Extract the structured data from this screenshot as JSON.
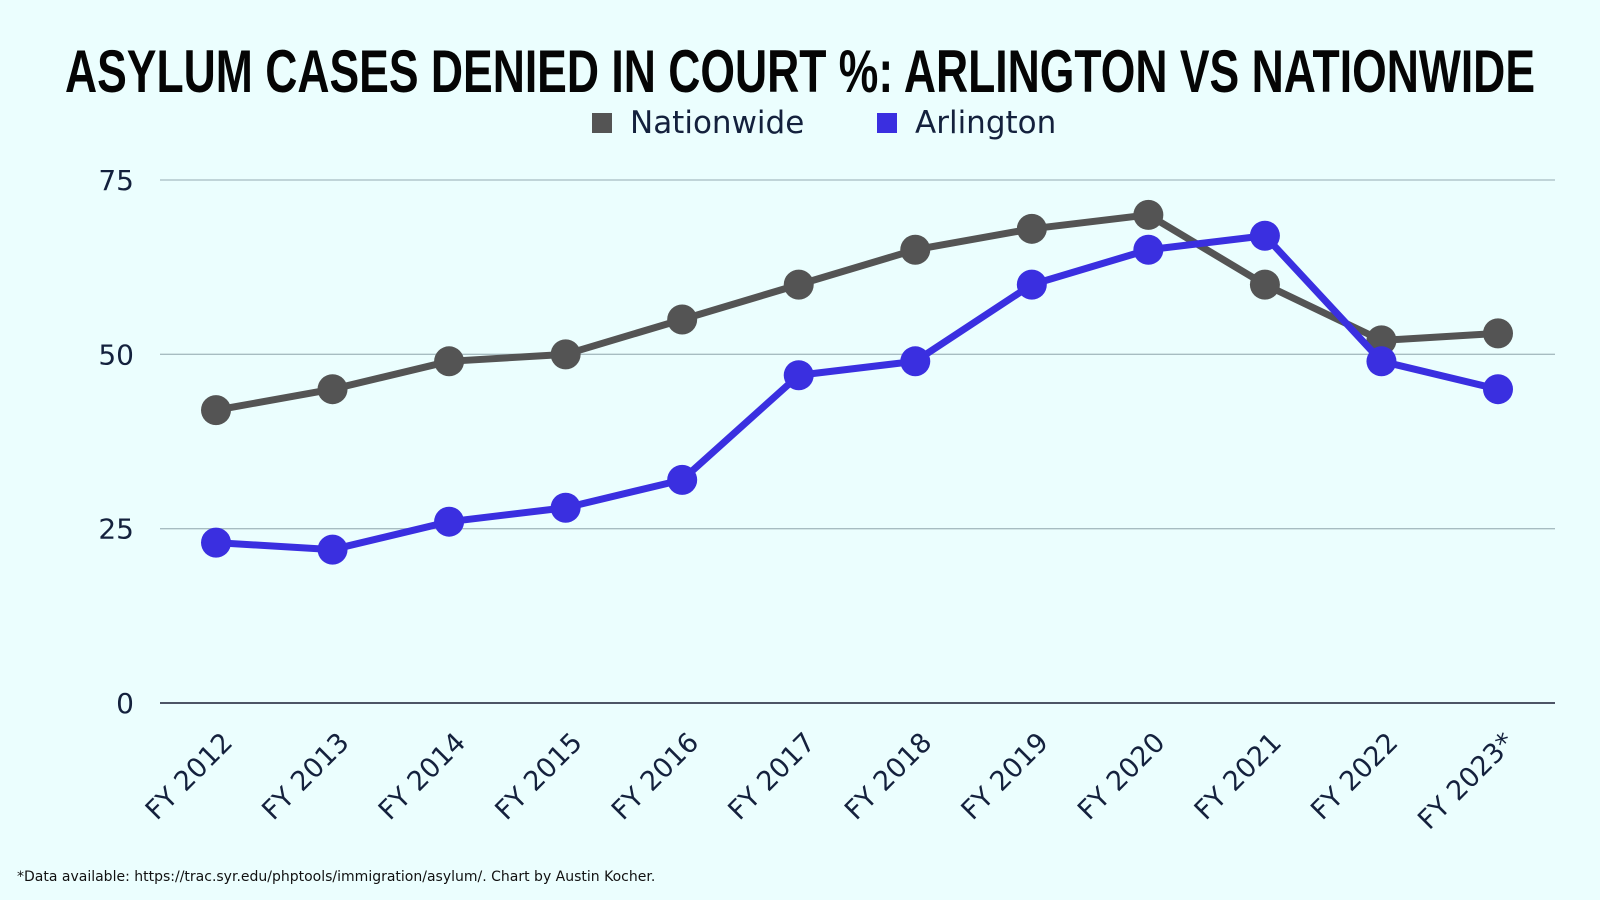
{
  "footnote": "*Data available: https://trac.syr.edu/phptools/immigration/asylum/. Chart by Austin Kocher.",
  "chart_data": {
    "type": "line",
    "title": "ASYLUM CASES DENIED IN COURT %: ARLINGTON VS NATIONWIDE",
    "xlabel": "",
    "ylabel": "",
    "categories": [
      "FY 2012",
      "FY 2013",
      "FY 2014",
      "FY 2015",
      "FY 2016",
      "FY 2017",
      "FY 2018",
      "FY 2019",
      "FY 2020",
      "FY 2021",
      "FY 2022",
      "FY 2023*"
    ],
    "ylim": [
      0,
      75
    ],
    "yticks": [
      0,
      25,
      50,
      75
    ],
    "grid": true,
    "legend": "top-center",
    "series": [
      {
        "name": "Nationwide",
        "color": "#545454",
        "values": [
          42,
          45,
          49,
          50,
          55,
          60,
          65,
          68,
          70,
          60,
          52,
          53
        ]
      },
      {
        "name": "Arlington",
        "color": "#3a2fe0",
        "values": [
          23,
          22,
          26,
          28,
          32,
          47,
          49,
          60,
          65,
          67,
          49,
          45
        ]
      }
    ]
  }
}
